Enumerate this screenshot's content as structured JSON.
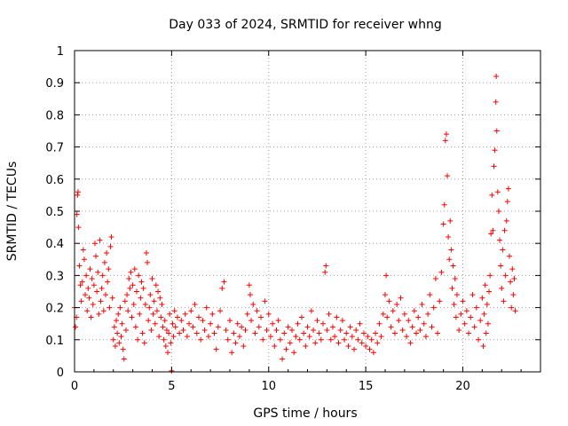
{
  "chart_data": {
    "type": "scatter",
    "title": "Day 033 of 2024, SRMTID for receiver whng",
    "xlabel": "GPS time / hours",
    "ylabel": "SRMTID / TECUs",
    "xlim": [
      0,
      24
    ],
    "ylim": [
      0,
      1
    ],
    "x_ticks": [
      0,
      5,
      10,
      15,
      20
    ],
    "y_ticks": [
      0,
      0.1,
      0.2,
      0.3,
      0.4,
      0.5,
      0.6,
      0.7,
      0.8,
      0.9,
      1
    ],
    "x_tick_labels": [
      "0",
      "5",
      "10",
      "15",
      "20"
    ],
    "y_tick_labels": [
      "0",
      "0.1",
      "0.2",
      "0.3",
      "0.4",
      "0.5",
      "0.6",
      "0.7",
      "0.8",
      "0.9",
      "1"
    ],
    "grid": true,
    "marker": "plus",
    "color": "#ff0000",
    "series": [
      {
        "name": "SRMTID",
        "points": [
          [
            0.0,
            0.2
          ],
          [
            0.05,
            0.14
          ],
          [
            0.1,
            0.17
          ],
          [
            0.12,
            0.49
          ],
          [
            0.15,
            0.55
          ],
          [
            0.18,
            0.56
          ],
          [
            0.2,
            0.45
          ],
          [
            0.25,
            0.33
          ],
          [
            0.3,
            0.27
          ],
          [
            0.35,
            0.22
          ],
          [
            0.4,
            0.28
          ],
          [
            0.45,
            0.38
          ],
          [
            0.5,
            0.35
          ],
          [
            0.55,
            0.24
          ],
          [
            0.6,
            0.3
          ],
          [
            0.65,
            0.19
          ],
          [
            0.7,
            0.26
          ],
          [
            0.75,
            0.23
          ],
          [
            0.8,
            0.32
          ],
          [
            0.85,
            0.17
          ],
          [
            0.9,
            0.29
          ],
          [
            0.95,
            0.21
          ],
          [
            1.0,
            0.27
          ],
          [
            1.05,
            0.4
          ],
          [
            1.1,
            0.36
          ],
          [
            1.15,
            0.25
          ],
          [
            1.2,
            0.31
          ],
          [
            1.25,
            0.18
          ],
          [
            1.3,
            0.41
          ],
          [
            1.35,
            0.22
          ],
          [
            1.4,
            0.26
          ],
          [
            1.45,
            0.3
          ],
          [
            1.5,
            0.19
          ],
          [
            1.55,
            0.34
          ],
          [
            1.6,
            0.24
          ],
          [
            1.65,
            0.37
          ],
          [
            1.7,
            0.28
          ],
          [
            1.75,
            0.32
          ],
          [
            1.8,
            0.2
          ],
          [
            1.85,
            0.39
          ],
          [
            1.9,
            0.42
          ],
          [
            1.95,
            0.23
          ],
          [
            2.0,
            0.1
          ],
          [
            2.05,
            0.14
          ],
          [
            2.1,
            0.08
          ],
          [
            2.15,
            0.16
          ],
          [
            2.2,
            0.12
          ],
          [
            2.25,
            0.18
          ],
          [
            2.3,
            0.09
          ],
          [
            2.35,
            0.2
          ],
          [
            2.4,
            0.11
          ],
          [
            2.45,
            0.15
          ],
          [
            2.5,
            0.07
          ],
          [
            2.55,
            0.04
          ],
          [
            2.6,
            0.22
          ],
          [
            2.65,
            0.13
          ],
          [
            2.7,
            0.24
          ],
          [
            2.75,
            0.19
          ],
          [
            2.8,
            0.29
          ],
          [
            2.85,
            0.26
          ],
          [
            2.9,
            0.31
          ],
          [
            2.95,
            0.17
          ],
          [
            3.0,
            0.27
          ],
          [
            3.05,
            0.21
          ],
          [
            3.1,
            0.32
          ],
          [
            3.15,
            0.14
          ],
          [
            3.2,
            0.25
          ],
          [
            3.25,
            0.1
          ],
          [
            3.3,
            0.3
          ],
          [
            3.35,
            0.18
          ],
          [
            3.4,
            0.23
          ],
          [
            3.45,
            0.28
          ],
          [
            3.5,
            0.12
          ],
          [
            3.55,
            0.26
          ],
          [
            3.6,
            0.09
          ],
          [
            3.65,
            0.21
          ],
          [
            3.7,
            0.37
          ],
          [
            3.75,
            0.34
          ],
          [
            3.8,
            0.16
          ],
          [
            3.85,
            0.2
          ],
          [
            3.9,
            0.24
          ],
          [
            3.95,
            0.13
          ],
          [
            4.0,
            0.29
          ],
          [
            4.05,
            0.18
          ],
          [
            4.1,
            0.22
          ],
          [
            4.15,
            0.15
          ],
          [
            4.2,
            0.27
          ],
          [
            4.25,
            0.19
          ],
          [
            4.3,
            0.25
          ],
          [
            4.35,
            0.11
          ],
          [
            4.4,
            0.23
          ],
          [
            4.45,
            0.17
          ],
          [
            4.5,
            0.21
          ],
          [
            4.55,
            0.14
          ],
          [
            4.6,
            0.1
          ],
          [
            4.65,
            0.16
          ],
          [
            4.7,
            0.08
          ],
          [
            4.75,
            0.13
          ],
          [
            4.8,
            0.06
          ],
          [
            4.85,
            0.12
          ],
          [
            4.9,
            0.18
          ],
          [
            4.95,
            0.09
          ],
          [
            5.0,
            0.003
          ],
          [
            5.05,
            0.15
          ],
          [
            5.1,
            0.11
          ],
          [
            5.15,
            0.19
          ],
          [
            5.2,
            0.14
          ],
          [
            5.3,
            0.17
          ],
          [
            5.4,
            0.12
          ],
          [
            5.5,
            0.16
          ],
          [
            5.6,
            0.13
          ],
          [
            5.7,
            0.18
          ],
          [
            5.8,
            0.11
          ],
          [
            5.9,
            0.15
          ],
          [
            6.0,
            0.19
          ],
          [
            6.1,
            0.14
          ],
          [
            6.2,
            0.21
          ],
          [
            6.3,
            0.12
          ],
          [
            6.4,
            0.17
          ],
          [
            6.5,
            0.1
          ],
          [
            6.6,
            0.16
          ],
          [
            6.7,
            0.13
          ],
          [
            6.8,
            0.2
          ],
          [
            6.9,
            0.11
          ],
          [
            7.0,
            0.15
          ],
          [
            7.1,
            0.18
          ],
          [
            7.2,
            0.12
          ],
          [
            7.3,
            0.07
          ],
          [
            7.4,
            0.14
          ],
          [
            7.5,
            0.19
          ],
          [
            7.6,
            0.26
          ],
          [
            7.7,
            0.28
          ],
          [
            7.8,
            0.13
          ],
          [
            7.9,
            0.1
          ],
          [
            8.0,
            0.16
          ],
          [
            8.1,
            0.06
          ],
          [
            8.2,
            0.12
          ],
          [
            8.3,
            0.09
          ],
          [
            8.4,
            0.15
          ],
          [
            8.5,
            0.11
          ],
          [
            8.6,
            0.14
          ],
          [
            8.7,
            0.08
          ],
          [
            8.8,
            0.13
          ],
          [
            8.9,
            0.18
          ],
          [
            9.0,
            0.27
          ],
          [
            9.05,
            0.24
          ],
          [
            9.1,
            0.16
          ],
          [
            9.2,
            0.21
          ],
          [
            9.3,
            0.12
          ],
          [
            9.4,
            0.19
          ],
          [
            9.5,
            0.14
          ],
          [
            9.6,
            0.17
          ],
          [
            9.7,
            0.1
          ],
          [
            9.8,
            0.22
          ],
          [
            9.9,
            0.13
          ],
          [
            10.0,
            0.18
          ],
          [
            10.1,
            0.11
          ],
          [
            10.2,
            0.15
          ],
          [
            10.3,
            0.08
          ],
          [
            10.4,
            0.13
          ],
          [
            10.5,
            0.16
          ],
          [
            10.6,
            0.1
          ],
          [
            10.7,
            0.04
          ],
          [
            10.8,
            0.12
          ],
          [
            10.9,
            0.07
          ],
          [
            11.0,
            0.14
          ],
          [
            11.1,
            0.09
          ],
          [
            11.2,
            0.13
          ],
          [
            11.3,
            0.06
          ],
          [
            11.4,
            0.11
          ],
          [
            11.5,
            0.15
          ],
          [
            11.6,
            0.1
          ],
          [
            11.7,
            0.17
          ],
          [
            11.8,
            0.12
          ],
          [
            11.9,
            0.08
          ],
          [
            12.0,
            0.14
          ],
          [
            12.1,
            0.11
          ],
          [
            12.2,
            0.19
          ],
          [
            12.3,
            0.13
          ],
          [
            12.4,
            0.09
          ],
          [
            12.5,
            0.16
          ],
          [
            12.6,
            0.12
          ],
          [
            12.7,
            0.1
          ],
          [
            12.8,
            0.15
          ],
          [
            12.9,
            0.31
          ],
          [
            12.95,
            0.33
          ],
          [
            13.0,
            0.13
          ],
          [
            13.1,
            0.18
          ],
          [
            13.2,
            0.1
          ],
          [
            13.3,
            0.14
          ],
          [
            13.4,
            0.11
          ],
          [
            13.5,
            0.17
          ],
          [
            13.6,
            0.09
          ],
          [
            13.7,
            0.13
          ],
          [
            13.8,
            0.16
          ],
          [
            13.9,
            0.1
          ],
          [
            14.0,
            0.12
          ],
          [
            14.1,
            0.08
          ],
          [
            14.2,
            0.14
          ],
          [
            14.3,
            0.11
          ],
          [
            14.4,
            0.07
          ],
          [
            14.5,
            0.13
          ],
          [
            14.6,
            0.1
          ],
          [
            14.7,
            0.15
          ],
          [
            14.8,
            0.09
          ],
          [
            14.9,
            0.12
          ],
          [
            15.0,
            0.08
          ],
          [
            15.1,
            0.11
          ],
          [
            15.2,
            0.07
          ],
          [
            15.3,
            0.1
          ],
          [
            15.4,
            0.06
          ],
          [
            15.5,
            0.12
          ],
          [
            15.6,
            0.09
          ],
          [
            15.7,
            0.15
          ],
          [
            15.8,
            0.11
          ],
          [
            15.9,
            0.18
          ],
          [
            16.0,
            0.24
          ],
          [
            16.05,
            0.3
          ],
          [
            16.1,
            0.17
          ],
          [
            16.2,
            0.22
          ],
          [
            16.3,
            0.14
          ],
          [
            16.4,
            0.19
          ],
          [
            16.5,
            0.12
          ],
          [
            16.6,
            0.21
          ],
          [
            16.7,
            0.16
          ],
          [
            16.8,
            0.23
          ],
          [
            16.9,
            0.13
          ],
          [
            17.0,
            0.18
          ],
          [
            17.1,
            0.11
          ],
          [
            17.2,
            0.16
          ],
          [
            17.3,
            0.09
          ],
          [
            17.4,
            0.14
          ],
          [
            17.5,
            0.19
          ],
          [
            17.6,
            0.12
          ],
          [
            17.7,
            0.17
          ],
          [
            17.8,
            0.13
          ],
          [
            17.9,
            0.21
          ],
          [
            18.0,
            0.15
          ],
          [
            18.1,
            0.11
          ],
          [
            18.2,
            0.18
          ],
          [
            18.3,
            0.24
          ],
          [
            18.4,
            0.14
          ],
          [
            18.5,
            0.2
          ],
          [
            18.6,
            0.29
          ],
          [
            18.7,
            0.12
          ],
          [
            18.8,
            0.22
          ],
          [
            18.9,
            0.31
          ],
          [
            19.0,
            0.46
          ],
          [
            19.05,
            0.52
          ],
          [
            19.1,
            0.72
          ],
          [
            19.15,
            0.74
          ],
          [
            19.2,
            0.61
          ],
          [
            19.25,
            0.42
          ],
          [
            19.3,
            0.35
          ],
          [
            19.35,
            0.47
          ],
          [
            19.4,
            0.38
          ],
          [
            19.45,
            0.26
          ],
          [
            19.5,
            0.33
          ],
          [
            19.55,
            0.21
          ],
          [
            19.6,
            0.29
          ],
          [
            19.65,
            0.17
          ],
          [
            19.7,
            0.24
          ],
          [
            19.8,
            0.13
          ],
          [
            19.9,
            0.18
          ],
          [
            20.0,
            0.22
          ],
          [
            20.1,
            0.15
          ],
          [
            20.2,
            0.19
          ],
          [
            20.3,
            0.12
          ],
          [
            20.4,
            0.17
          ],
          [
            20.5,
            0.24
          ],
          [
            20.6,
            0.14
          ],
          [
            20.7,
            0.2
          ],
          [
            20.8,
            0.1
          ],
          [
            20.9,
            0.16
          ],
          [
            21.0,
            0.23
          ],
          [
            21.05,
            0.08
          ],
          [
            21.1,
            0.18
          ],
          [
            21.15,
            0.27
          ],
          [
            21.2,
            0.12
          ],
          [
            21.25,
            0.21
          ],
          [
            21.3,
            0.15
          ],
          [
            21.35,
            0.25
          ],
          [
            21.4,
            0.3
          ],
          [
            21.45,
            0.43
          ],
          [
            21.5,
            0.55
          ],
          [
            21.55,
            0.44
          ],
          [
            21.6,
            0.64
          ],
          [
            21.65,
            0.69
          ],
          [
            21.7,
            0.84
          ],
          [
            21.72,
            0.92
          ],
          [
            21.75,
            0.75
          ],
          [
            21.8,
            0.56
          ],
          [
            21.85,
            0.5
          ],
          [
            21.9,
            0.41
          ],
          [
            21.95,
            0.33
          ],
          [
            22.0,
            0.26
          ],
          [
            22.05,
            0.38
          ],
          [
            22.1,
            0.22
          ],
          [
            22.15,
            0.44
          ],
          [
            22.2,
            0.3
          ],
          [
            22.25,
            0.47
          ],
          [
            22.3,
            0.53
          ],
          [
            22.35,
            0.57
          ],
          [
            22.4,
            0.36
          ],
          [
            22.45,
            0.28
          ],
          [
            22.5,
            0.2
          ],
          [
            22.55,
            0.32
          ],
          [
            22.6,
            0.24
          ],
          [
            22.65,
            0.29
          ],
          [
            22.7,
            0.19
          ]
        ]
      }
    ]
  }
}
